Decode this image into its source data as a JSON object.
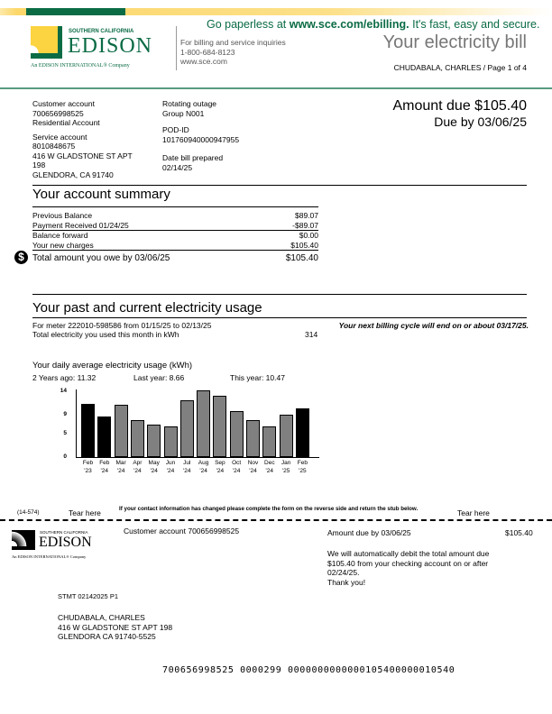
{
  "header": {
    "paperless": "Go paperless at ",
    "paperless_url": "www.sce.com/ebilling.",
    "paperless_tail": " It's fast, easy and secure.",
    "logo_top": "SOUTHERN CALIFORNIA",
    "logo_main": "EDISON",
    "logo_sub": "An EDISON INTERNATIONAL® Company",
    "inquiries": "For billing and service inquiries",
    "phone": "1-800-684-8123",
    "website": "www.sce.com",
    "title": "Your electricity bill",
    "name_page": "CHUDABALA,  CHARLES / Page 1 of 4",
    "brand_green": "#0a6b45",
    "brand_yellow": "#fcd76a"
  },
  "account": {
    "customer_label": "Customer  account",
    "customer_number": "700656998525",
    "account_type": "Residential Account",
    "service_label": "Service  account",
    "service_number": "8010848675",
    "address1": "416 W GLADSTONE ST APT",
    "address2": "198",
    "address3": "GLENDORA, CA 91740",
    "outage_label": "Rotating  outage",
    "outage_group": "Group N001",
    "pod_label": "POD-ID",
    "pod_id": "101760940000947955",
    "prepared_label": "Date bill  prepared",
    "prepared_date": "02/14/25",
    "amount_due": "Amount  due $105.40",
    "due_by": "Due by 03/06/25"
  },
  "summary": {
    "title": "Your account summary",
    "rows": [
      {
        "label": "Previous Balance",
        "value": "$89.07"
      },
      {
        "label": "Payment Received 01/24/25",
        "value": "-$89.07"
      },
      {
        "label": "Balance forward",
        "value": "$0.00"
      },
      {
        "label": "Your new charges",
        "value": "$105.40"
      }
    ],
    "total_label": "Total amount  you owe by 03/06/25",
    "total_value": "$105.40"
  },
  "usage": {
    "title": "Your past and current electricity usage",
    "meter": "For meter 222010-598586 from 01/15/25 to 02/13/25",
    "total_label": "Total electricity   you used this month  in kWh",
    "total_value": "314",
    "next_cycle": "Your next billing cycle will end on or about 03/17/25.",
    "chart_title": "Your daily average electricity  usage (kWh)",
    "two_years": "2 Years ago: 11.32",
    "last_year": "Last year: 8.66",
    "this_year": "This year: 10.47"
  },
  "chart_data": {
    "type": "bar",
    "title": "Your daily average electricity  usage (kWh)",
    "categories": [
      "Feb '23",
      "Feb '24",
      "Mar '24",
      "Apr '24",
      "May '24",
      "Jun '24",
      "Jul '24",
      "Aug '24",
      "Sep '24",
      "Oct '24",
      "Nov '24",
      "Dec '24",
      "Jan '25",
      "Feb '25"
    ],
    "cat_line1": [
      "Feb",
      "Feb",
      "Mar",
      "Apr",
      "May",
      "Jun",
      "Jul",
      "Aug",
      "Sep",
      "Oct",
      "Nov",
      "Dec",
      "Jan",
      "Feb"
    ],
    "cat_line2": [
      "'23",
      "'24",
      "'24",
      "'24",
      "'24",
      "'24",
      "'24",
      "'24",
      "'24",
      "'24",
      "'24",
      "'24",
      "'25",
      "'25"
    ],
    "values": [
      11.32,
      8.66,
      11.2,
      7.9,
      6.9,
      6.5,
      12.2,
      14.2,
      13.0,
      9.8,
      7.8,
      6.5,
      9.0,
      10.47
    ],
    "highlight": [
      true,
      true,
      false,
      false,
      false,
      false,
      false,
      false,
      false,
      false,
      false,
      false,
      false,
      true
    ],
    "colors": {
      "highlight": "#000000",
      "normal": "#808080"
    },
    "yticks": [
      "14",
      "9",
      "5",
      "0"
    ],
    "ytick_values": [
      14,
      9,
      5,
      0
    ],
    "ylim": [
      0,
      14
    ],
    "grid": false
  },
  "stub": {
    "code": "(14-574)",
    "tear_left": "Tear here",
    "notice": "If your contact information has changed please complete the form on the reverse side and return the stub below.",
    "tear_right": "Tear here",
    "customer_account": "Customer account 700656998525",
    "amount_due_label": "Amount  due by 03/06/25",
    "amount_due_value": "$105.40",
    "autopay": [
      "We will automatically  debit the total amount due",
      "$105.40 from your checking  account  on or after",
      "02/24/25.",
      "Thank you!"
    ],
    "stmt": "STMT 02142025 P1",
    "mail_name": "CHUDABALA, CHARLES",
    "mail_addr1": "416 W GLADSTONE ST APT 198",
    "mail_addr2": "GLENDORA CA  91740-5525",
    "scanline": "700656998525 0000299 0000000000000105400000010540"
  }
}
